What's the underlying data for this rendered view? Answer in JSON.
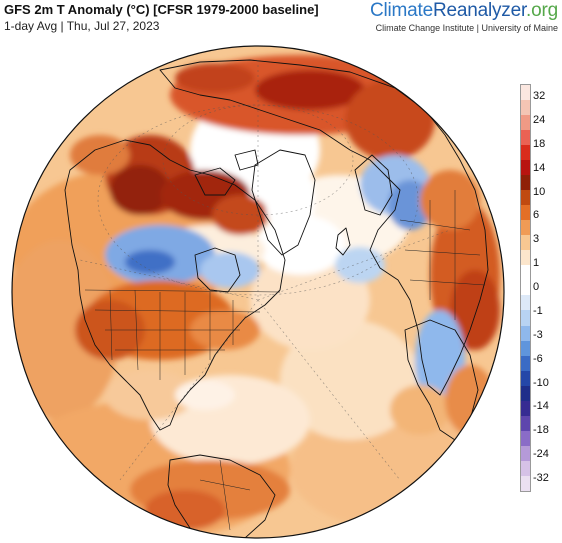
{
  "header": {
    "title": "GFS 2m T Anomaly (°C) [CFSR 1979-2000 baseline]",
    "subtitle": "1-day Avg | Thu, Jul 27, 2023"
  },
  "brand": {
    "name_part1": "Climate",
    "name_part2": "Reanalyzer",
    "name_part3": ".org",
    "tagline": "Climate Change Institute | University of Maine"
  },
  "legend": {
    "ticks": [
      "32",
      "24",
      "18",
      "14",
      "10",
      "6",
      "3",
      "1",
      "0",
      "-1",
      "-3",
      "-6",
      "-10",
      "-14",
      "-18",
      "-24",
      "-32"
    ],
    "colors": [
      "#fbe7e0",
      "#f4c5b4",
      "#f09a85",
      "#ea6254",
      "#d92c1c",
      "#b81410",
      "#8f2008",
      "#c04a10",
      "#e36f26",
      "#f09b56",
      "#f7c792",
      "#fce6cc",
      "#ffffff",
      "#ffffff",
      "#dde9f8",
      "#b8d3f3",
      "#8fb8ec",
      "#5f95dc",
      "#3a6bc5",
      "#2547a8",
      "#1f2e8a",
      "#362c92",
      "#5e46ad",
      "#8a6cc7",
      "#b59ad8",
      "#d6c2e7",
      "#ebe0f1"
    ]
  },
  "map": {
    "description_label": "Orthographic globe centered on the North Atlantic / Arctic",
    "colors": {
      "ocean_base": "#f7c792",
      "warm": "#e36f26",
      "hot": "#b81410",
      "cool": "#8fb8ec",
      "cold": "#3a6bc5",
      "neutral": "#ffffff"
    }
  }
}
